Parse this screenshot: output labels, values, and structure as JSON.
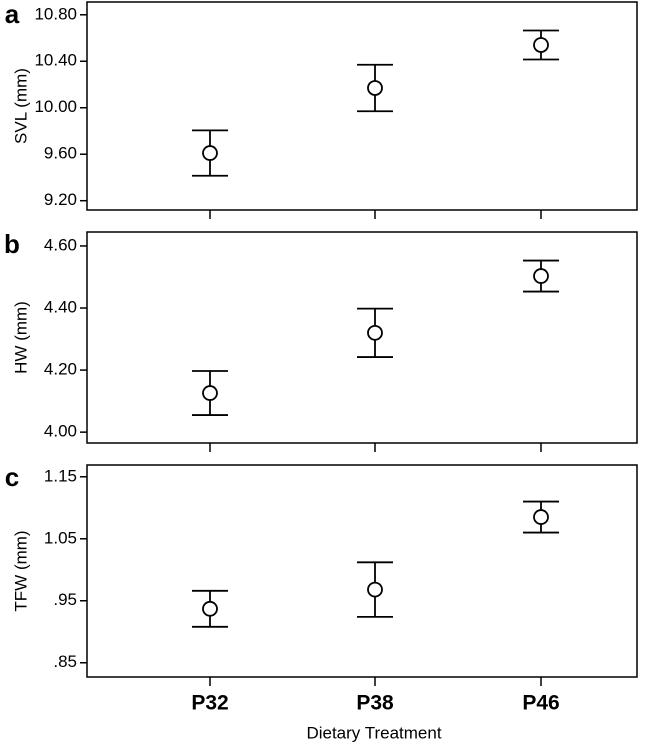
{
  "chart_data": [
    {
      "type": "errorbar",
      "panel": "a",
      "ylabel": "SVL (mm)",
      "values": [
        9.61,
        10.17,
        10.54
      ],
      "errors": [
        0.195,
        0.2,
        0.125
      ],
      "color": "#000000",
      "ylim": [
        9.12,
        10.91
      ],
      "yticks": [
        {
          "value": 9.2,
          "label": "9.20"
        },
        {
          "value": 9.6,
          "label": "9.60"
        },
        {
          "value": 10.0,
          "label": "10.00"
        },
        {
          "value": 10.4,
          "label": "10.40"
        },
        {
          "value": 10.8,
          "label": "10.80"
        }
      ]
    },
    {
      "type": "errorbar",
      "panel": "b",
      "ylabel": "HW (mm)",
      "values": [
        4.126,
        4.32,
        4.503
      ],
      "errors": [
        0.071,
        0.078,
        0.05
      ],
      "color": "#000000",
      "ylim": [
        3.965,
        4.645
      ],
      "yticks": [
        {
          "value": 4.0,
          "label": "4.00"
        },
        {
          "value": 4.2,
          "label": "4.20"
        },
        {
          "value": 4.4,
          "label": "4.40"
        },
        {
          "value": 4.6,
          "label": "4.60"
        }
      ]
    },
    {
      "type": "errorbar",
      "panel": "c",
      "ylabel": "TFW (mm)",
      "xlabel": "Dietary Treatment",
      "categories": [
        "P32",
        "P38",
        "P46"
      ],
      "values": [
        0.937,
        0.968,
        1.085
      ],
      "errors": [
        0.029,
        0.044,
        0.025
      ],
      "color": "#000000",
      "ylim": [
        0.827,
        1.169
      ],
      "yticks": [
        {
          "value": 0.85,
          "label": ".85"
        },
        {
          "value": 0.95,
          "label": ".95"
        },
        {
          "value": 1.05,
          "label": "1.05"
        },
        {
          "value": 1.15,
          "label": "1.15"
        }
      ]
    }
  ]
}
